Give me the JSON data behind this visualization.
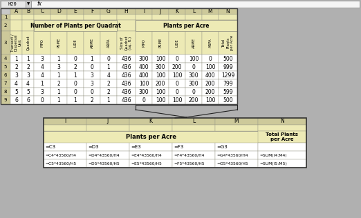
{
  "cell_ref": "H20",
  "col_labels": [
    "",
    "A",
    "B",
    "C",
    "D",
    "E",
    "F",
    "G",
    "H",
    "I",
    "J",
    "K",
    "L",
    "M",
    "N"
  ],
  "header_bg": "#cdc99a",
  "cell_bg": "#edeab5",
  "white": "#ffffff",
  "corner_bg": "#b8b8b8",
  "col_hdr_bg": "#cdc99a",
  "grid_color": "#999988",
  "bg_color": "#b0b0b0",
  "row3_labels": [
    "",
    "Transect /\nDispersal\nUnit",
    "Quadrat",
    "PIPO",
    "PSME",
    "LIDE",
    "ARME",
    "ARPA",
    "Size of\nQuadrat\n(sq. ft.)",
    "PIPO",
    "PSME",
    "LIDE",
    "ARME",
    "ARPA",
    "Total\nPlants\nper Acre"
  ],
  "data_rows": [
    [
      1,
      1,
      3,
      1,
      0,
      1,
      0,
      436,
      300,
      100,
      0,
      100,
      0,
      500
    ],
    [
      2,
      2,
      4,
      3,
      2,
      0,
      1,
      436,
      400,
      300,
      200,
      0,
      100,
      999
    ],
    [
      3,
      3,
      4,
      1,
      1,
      3,
      4,
      436,
      400,
      100,
      100,
      300,
      400,
      1299
    ],
    [
      4,
      4,
      1,
      2,
      0,
      3,
      2,
      436,
      100,
      200,
      0,
      300,
      200,
      799
    ],
    [
      5,
      5,
      3,
      1,
      0,
      0,
      2,
      436,
      300,
      100,
      0,
      0,
      200,
      599
    ],
    [
      6,
      6,
      0,
      1,
      1,
      2,
      1,
      436,
      0,
      100,
      100,
      200,
      100,
      500
    ]
  ],
  "inset_col_headers": [
    "I",
    "J",
    "K",
    "L",
    "M",
    "N"
  ],
  "inset_row3": [
    "=C3",
    "=D3",
    "=E3",
    "=F3",
    "=G3",
    ""
  ],
  "inset_row4": [
    "=C4*43560/H4",
    "=D4*43560/H4",
    "=E4*43560/H4",
    "=F4*43560/H4",
    "=G4*43560/H4",
    "=SUM(I4:M4)"
  ],
  "inset_row5": [
    "=C5*43560/H5",
    "=D5*43560/H5",
    "=E5*43560/H5",
    "=F5*43560/H5",
    "=G5*43560/H5",
    "=SUM(I5:M5)"
  ]
}
